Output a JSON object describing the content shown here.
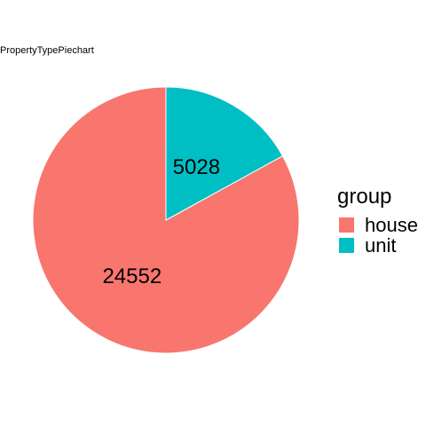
{
  "chart_data": {
    "type": "pie",
    "title": "PropertyTypePiechart",
    "slices": [
      {
        "label": "house",
        "value": 24552,
        "color": "#F8766D"
      },
      {
        "label": "unit",
        "value": 5028,
        "color": "#00BFC4"
      }
    ],
    "legend": {
      "title": "group",
      "placement": "right"
    }
  }
}
